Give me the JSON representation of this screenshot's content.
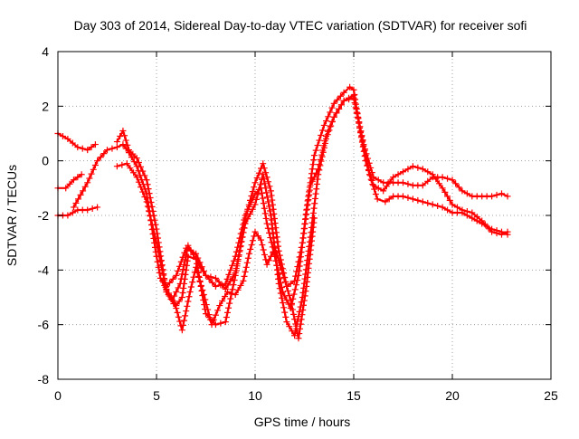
{
  "chart_data": {
    "type": "scatter",
    "title": "Day 303 of 2014, Sidereal Day-to-day VTEC variation (SDTVAR) for receiver sofi",
    "xlabel": "GPS time / hours",
    "ylabel": "SDTVAR / TECUs",
    "xlim": [
      0,
      25
    ],
    "ylim": [
      -8,
      4
    ],
    "xticks": [
      "0",
      "5",
      "10",
      "15",
      "20",
      "25"
    ],
    "yticks": [
      "-8",
      "-6",
      "-4",
      "-2",
      "0",
      "2",
      "4"
    ],
    "grid": true,
    "marker": "+",
    "color": "#ff0000",
    "series": [
      {
        "x": [
          0.0,
          0.5,
          1.0,
          1.5,
          1.9
        ],
        "y": [
          1.0,
          0.8,
          0.5,
          0.4,
          0.6
        ]
      },
      {
        "x": [
          0.0,
          0.4,
          0.8,
          1.2
        ],
        "y": [
          -1.0,
          -1.0,
          -0.7,
          -0.5
        ]
      },
      {
        "x": [
          0.0,
          0.5,
          1.0,
          1.5,
          2.0
        ],
        "y": [
          -2.0,
          -2.0,
          -1.8,
          -1.8,
          -1.7
        ]
      },
      {
        "x": [
          0.8,
          1.5,
          2.0,
          2.5,
          3.0,
          3.3,
          3.6,
          4.0,
          4.5,
          5.0,
          5.2,
          5.5,
          6.0,
          6.5,
          7.0,
          7.5,
          8.0,
          8.5,
          9.0,
          9.5,
          10.0,
          10.3,
          10.6,
          11.0,
          11.4,
          11.8,
          12.2,
          12.6,
          13.0,
          13.5,
          14.0,
          14.5,
          14.8,
          15.0,
          15.3,
          15.6,
          16.0,
          16.5,
          17.0,
          17.5,
          18.0,
          18.5,
          19.0,
          19.5,
          20.0,
          20.5,
          21.0,
          21.5,
          22.0,
          22.5,
          22.8
        ],
        "y": [
          -1.7,
          -0.8,
          0.0,
          0.4,
          0.5,
          0.6,
          0.3,
          -0.2,
          -1.2,
          -3.5,
          -4.3,
          -4.6,
          -4.2,
          -3.2,
          -3.4,
          -4.2,
          -4.6,
          -4.5,
          -3.5,
          -2.0,
          -1.2,
          -1.0,
          -2.3,
          -3.5,
          -4.8,
          -5.4,
          -4.2,
          -1.8,
          0.2,
          1.3,
          2.1,
          2.5,
          2.7,
          2.6,
          1.2,
          0.0,
          -0.9,
          -1.1,
          -0.6,
          -0.4,
          -0.2,
          -0.3,
          -0.5,
          -1.0,
          -1.6,
          -1.8,
          -1.9,
          -2.2,
          -2.6,
          -2.7,
          -2.6
        ]
      },
      {
        "x": [
          3.0,
          3.5,
          4.0,
          4.5,
          5.0,
          5.5,
          6.0,
          6.3,
          6.6,
          7.0,
          7.5,
          8.0,
          8.5,
          9.0,
          9.5,
          10.0,
          10.4,
          10.8,
          11.2,
          11.6,
          12.0,
          12.4,
          12.8,
          13.2,
          13.6,
          14.0,
          14.5,
          15.0,
          15.4,
          15.8,
          16.2,
          16.6,
          17.0,
          17.5,
          18.0,
          18.5,
          19.0,
          19.5,
          20.0,
          20.5,
          21.0,
          21.5,
          22.0,
          22.5,
          22.8
        ],
        "y": [
          -0.2,
          -0.1,
          -0.6,
          -1.5,
          -3.0,
          -4.7,
          -5.3,
          -5.0,
          -3.5,
          -3.6,
          -4.2,
          -4.3,
          -4.7,
          -4.1,
          -2.3,
          -1.6,
          -0.5,
          -2.0,
          -4.5,
          -5.9,
          -6.4,
          -5.0,
          -2.8,
          -0.5,
          0.8,
          1.6,
          2.2,
          2.3,
          0.9,
          -0.5,
          -1.4,
          -1.5,
          -1.3,
          -1.3,
          -1.4,
          -1.5,
          -1.6,
          -1.7,
          -1.9,
          -1.9,
          -2.1,
          -2.3,
          -2.5,
          -2.6,
          -2.7
        ]
      },
      {
        "x": [
          3.0,
          3.3,
          3.6,
          4.0,
          4.5,
          5.0,
          5.5,
          5.8,
          6.2,
          6.6,
          7.0,
          7.5,
          8.0,
          8.5,
          9.0,
          9.5,
          10.0,
          10.4,
          10.8,
          11.2,
          11.6,
          12.0,
          12.4,
          12.8,
          13.2,
          13.6,
          14.0,
          14.5,
          15.0,
          15.5,
          16.0,
          16.5,
          17.0,
          17.5,
          18.0,
          18.5,
          19.0,
          19.5,
          20.0,
          20.5,
          21.0,
          21.5,
          22.0,
          22.5,
          22.8
        ],
        "y": [
          0.7,
          1.1,
          0.4,
          0.1,
          -0.7,
          -2.5,
          -4.8,
          -5.1,
          -4.5,
          -3.1,
          -3.6,
          -5.6,
          -6.0,
          -5.9,
          -4.2,
          -2.1,
          -0.8,
          -0.1,
          -1.1,
          -3.3,
          -4.6,
          -4.4,
          -3.0,
          -0.9,
          -0.3,
          0.9,
          1.6,
          2.2,
          2.4,
          0.6,
          -0.6,
          -0.8,
          -0.8,
          -0.8,
          -0.9,
          -0.9,
          -0.6,
          -0.6,
          -0.7,
          -1.1,
          -1.3,
          -1.3,
          -1.3,
          -1.2,
          -1.3
        ]
      },
      {
        "x": [
          5.3,
          5.6,
          6.0,
          6.3,
          6.7,
          7.0,
          7.4,
          7.8,
          8.2,
          8.6,
          9.0,
          9.4,
          9.7,
          10.0,
          10.3,
          10.6,
          11.0,
          11.4,
          11.8,
          12.2,
          12.6,
          13.0
        ],
        "y": [
          -4.4,
          -4.9,
          -5.4,
          -6.2,
          -4.8,
          -3.9,
          -4.9,
          -6.0,
          -5.3,
          -4.8,
          -4.9,
          -4.4,
          -3.4,
          -2.6,
          -2.9,
          -3.8,
          -3.2,
          -4.1,
          -5.1,
          -6.5,
          -4.6,
          -2.1
        ]
      }
    ]
  }
}
